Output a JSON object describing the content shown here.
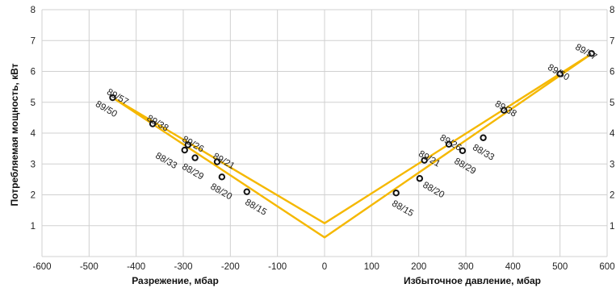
{
  "chart_data": {
    "type": "line",
    "ylabel": "Потребляемая мощность, кВт",
    "xlabel_left": "Разрежение, мбар",
    "xlabel_right": "Избыточное давление, мбар",
    "xlim": [
      -600,
      600
    ],
    "ylim": [
      0,
      8
    ],
    "x_ticks": [
      -600,
      -500,
      -400,
      -300,
      -200,
      -100,
      0,
      100,
      200,
      300,
      400,
      500,
      600
    ],
    "y_ticks": [
      1,
      2,
      3,
      4,
      5,
      6,
      7,
      8
    ],
    "grid": true,
    "line_color": "#f5b800",
    "marker_color": "#111111",
    "series": [
      {
        "x": [
          -450,
          0,
          570
        ],
        "y": [
          5.15,
          1.08,
          6.6
        ]
      },
      {
        "x": [
          -450,
          0,
          570
        ],
        "y": [
          5.15,
          0.62,
          6.6
        ]
      }
    ],
    "points": [
      {
        "x": -450,
        "y": 5.15,
        "labels": [
          "89/57",
          "89/50"
        ]
      },
      {
        "x": -365,
        "y": 4.3,
        "labels": [
          "89/38"
        ]
      },
      {
        "x": -290,
        "y": 3.62,
        "labels": [
          "89/26"
        ]
      },
      {
        "x": -297,
        "y": 3.45,
        "labels": [
          "88/33"
        ]
      },
      {
        "x": -275,
        "y": 3.2,
        "labels": [
          "88/29"
        ]
      },
      {
        "x": -228,
        "y": 3.07,
        "labels": [
          "89/21"
        ]
      },
      {
        "x": -218,
        "y": 2.58,
        "labels": [
          "88/20"
        ]
      },
      {
        "x": -165,
        "y": 2.1,
        "labels": [
          "88/15"
        ]
      },
      {
        "x": 152,
        "y": 2.06,
        "labels": [
          "88/15"
        ]
      },
      {
        "x": 202,
        "y": 2.53,
        "labels": [
          "88/20"
        ]
      },
      {
        "x": 212,
        "y": 3.12,
        "labels": [
          "89/21"
        ]
      },
      {
        "x": 264,
        "y": 3.64,
        "labels": [
          "89/26"
        ]
      },
      {
        "x": 293,
        "y": 3.43,
        "labels": [
          "88/29"
        ]
      },
      {
        "x": 337,
        "y": 3.85,
        "labels": [
          "88/33"
        ]
      },
      {
        "x": 381,
        "y": 4.74,
        "labels": [
          "89/38"
        ]
      },
      {
        "x": 500,
        "y": 5.92,
        "labels": [
          "89/50"
        ]
      },
      {
        "x": 567,
        "y": 6.58,
        "labels": [
          "89/57"
        ]
      }
    ]
  }
}
